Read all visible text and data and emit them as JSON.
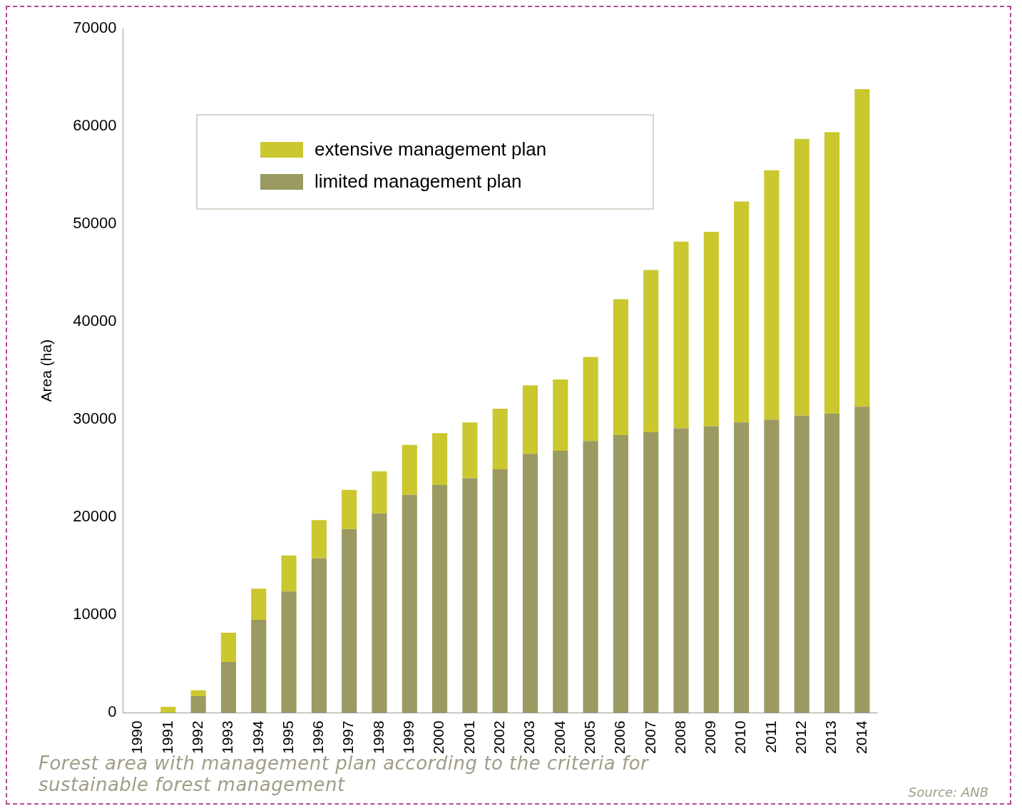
{
  "chart_data": {
    "type": "bar",
    "stacked": true,
    "ylabel": "Area (ha)",
    "categories": [
      "1990",
      "1991",
      "1992",
      "1993",
      "1994",
      "1995",
      "1996",
      "1997",
      "1998",
      "1999",
      "2000",
      "2001",
      "2002",
      "2003",
      "2004",
      "2005",
      "2006",
      "2007",
      "2008",
      "2009",
      "2010",
      "2011",
      "2012",
      "2013",
      "2014"
    ],
    "series": [
      {
        "name": "limited management plan",
        "color": "#9a9a62",
        "values": [
          0,
          0,
          1700,
          5200,
          9500,
          12400,
          15800,
          18800,
          20400,
          22300,
          23300,
          24000,
          24900,
          26500,
          26800,
          27800,
          28400,
          28700,
          29100,
          29300,
          29700,
          30000,
          30400,
          30600,
          31300
        ]
      },
      {
        "name": "extensive management plan",
        "color": "#cbc72f",
        "values": [
          0,
          600,
          600,
          3000,
          3200,
          3700,
          3900,
          4000,
          4300,
          5100,
          5300,
          5700,
          6200,
          7000,
          7300,
          8600,
          13900,
          16600,
          19100,
          19900,
          22600,
          25500,
          28300,
          28800,
          32500
        ]
      }
    ],
    "ylim": [
      0,
      70000
    ],
    "yticks": [
      0,
      10000,
      20000,
      30000,
      40000,
      50000,
      60000,
      70000
    ],
    "grid": false,
    "legend": "top left",
    "annotations": [
      "Forest area with management plan according to the criteria for sustainable forest management",
      "Source: ANB"
    ]
  }
}
